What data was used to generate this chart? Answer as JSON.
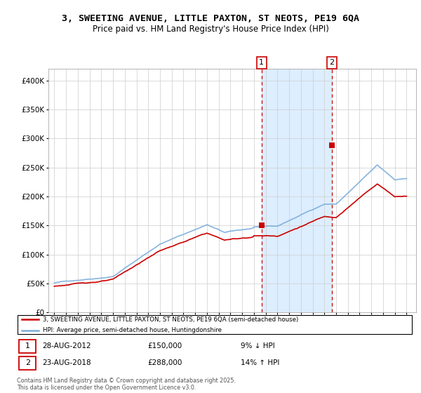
{
  "title_line1": "3, SWEETING AVENUE, LITTLE PAXTON, ST NEOTS, PE19 6QA",
  "title_line2": "Price paid vs. HM Land Registry's House Price Index (HPI)",
  "ylim": [
    0,
    420000
  ],
  "yticks": [
    0,
    50000,
    100000,
    150000,
    200000,
    250000,
    300000,
    350000,
    400000
  ],
  "ytick_labels": [
    "£0",
    "£50K",
    "£100K",
    "£150K",
    "£200K",
    "£250K",
    "£300K",
    "£350K",
    "£400K"
  ],
  "xlim_start": 1994.5,
  "xlim_end": 2025.8,
  "sale1_x": 2012.65,
  "sale1_y": 150000,
  "sale2_x": 2018.65,
  "sale2_y": 288000,
  "legend_line1": "3, SWEETING AVENUE, LITTLE PAXTON, ST NEOTS, PE19 6QA (semi-detached house)",
  "legend_line2": "HPI: Average price, semi-detached house, Huntingdonshire",
  "ann1_date": "28-AUG-2012",
  "ann1_price": "£150,000",
  "ann1_hpi": "9% ↓ HPI",
  "ann2_date": "23-AUG-2018",
  "ann2_price": "£288,000",
  "ann2_hpi": "14% ↑ HPI",
  "footer": "Contains HM Land Registry data © Crown copyright and database right 2025.\nThis data is licensed under the Open Government Licence v3.0.",
  "hpi_color": "#7aaddb",
  "price_color": "#cc0000",
  "shade_color": "#ddeeff",
  "grid_color": "#cccccc"
}
